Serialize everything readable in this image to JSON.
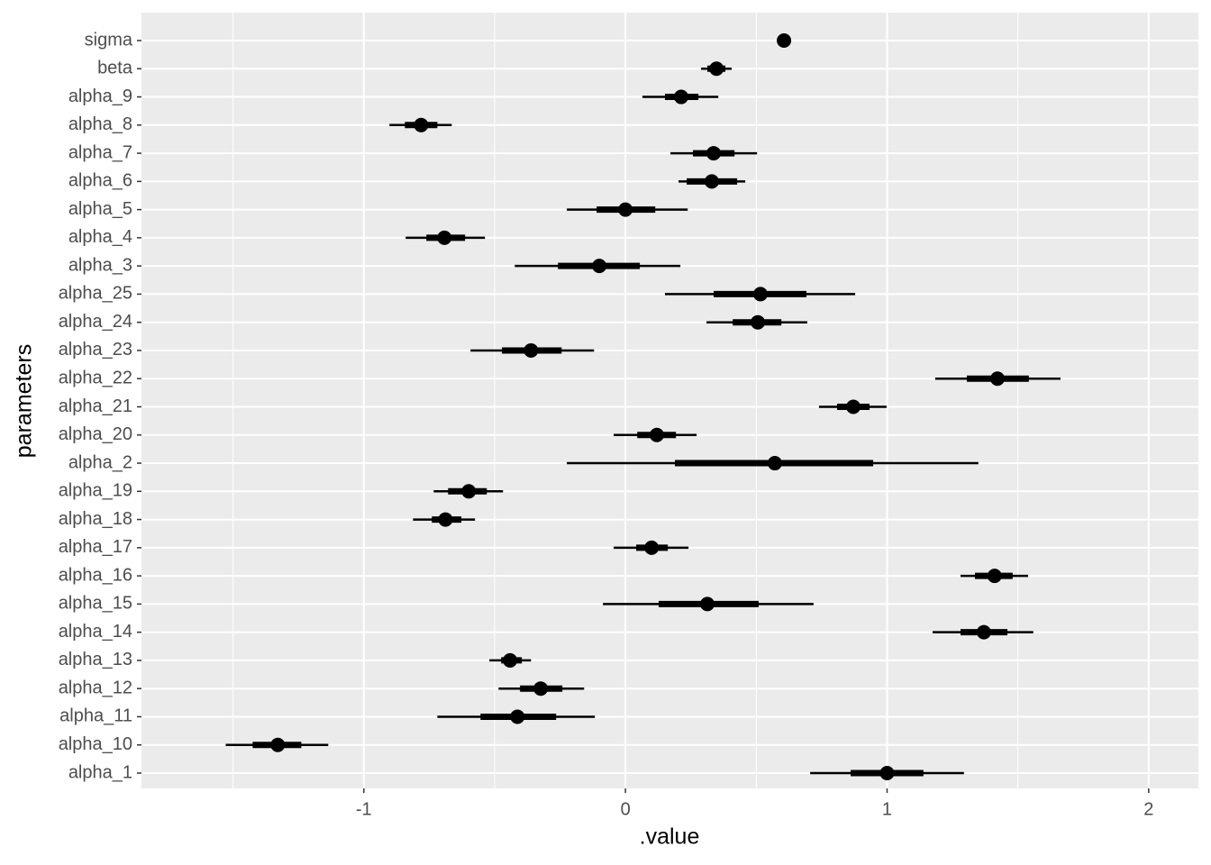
{
  "chart_data": {
    "type": "pointinterval",
    "x_label": ".value",
    "y_label": "parameters",
    "categories": [
      "sigma",
      "beta",
      "alpha_9",
      "alpha_8",
      "alpha_7",
      "alpha_6",
      "alpha_5",
      "alpha_4",
      "alpha_3",
      "alpha_25",
      "alpha_24",
      "alpha_23",
      "alpha_22",
      "alpha_21",
      "alpha_20",
      "alpha_2",
      "alpha_19",
      "alpha_18",
      "alpha_17",
      "alpha_16",
      "alpha_15",
      "alpha_14",
      "alpha_13",
      "alpha_12",
      "alpha_11",
      "alpha_10",
      "alpha_1"
    ],
    "values": [
      0.606,
      0.348,
      0.213,
      -0.781,
      0.337,
      0.33,
      0.0,
      -0.692,
      -0.1,
      0.516,
      0.506,
      -0.361,
      1.422,
      0.871,
      0.12,
      0.571,
      -0.599,
      -0.688,
      0.1,
      1.411,
      0.313,
      1.37,
      -0.441,
      -0.324,
      -0.413,
      -1.329,
      1.0
    ],
    "lower_66": [
      0.6,
      0.313,
      0.151,
      -0.843,
      0.258,
      0.234,
      -0.11,
      -0.761,
      -0.258,
      0.337,
      0.41,
      -0.472,
      1.305,
      0.809,
      0.045,
      0.189,
      -0.678,
      -0.74,
      0.041,
      1.336,
      0.127,
      1.281,
      -0.475,
      -0.403,
      -0.554,
      -1.425,
      0.861
    ],
    "upper_66": [
      0.612,
      0.382,
      0.279,
      -0.719,
      0.417,
      0.427,
      0.114,
      -0.613,
      0.055,
      0.692,
      0.596,
      -0.244,
      1.542,
      0.933,
      0.193,
      0.947,
      -0.53,
      -0.627,
      0.162,
      1.48,
      0.509,
      1.46,
      -0.396,
      -0.241,
      -0.265,
      -1.239,
      1.139
    ],
    "lower_95": [
      0.595,
      0.289,
      0.065,
      -0.902,
      0.172,
      0.203,
      -0.224,
      -0.84,
      -0.423,
      0.151,
      0.31,
      -0.592,
      1.184,
      0.74,
      -0.045,
      -0.224,
      -0.733,
      -0.812,
      -0.045,
      1.281,
      -0.086,
      1.174,
      -0.52,
      -0.485,
      -0.719,
      -1.528,
      0.706
    ],
    "upper_95": [
      0.617,
      0.406,
      0.355,
      -0.664,
      0.503,
      0.458,
      0.238,
      -0.537,
      0.21,
      0.878,
      0.695,
      -0.12,
      1.663,
      0.998,
      0.272,
      1.349,
      -0.468,
      -0.575,
      0.241,
      1.539,
      0.719,
      1.559,
      -0.361,
      -0.158,
      -0.117,
      -1.136,
      1.294
    ],
    "color": "#000000",
    "xlim": [
      -1.85,
      2.19
    ],
    "xticks": [
      -1,
      0,
      1,
      2
    ],
    "x_minor_grid": [
      -1.5,
      -0.5,
      0.5,
      1.5
    ],
    "grid": true
  }
}
